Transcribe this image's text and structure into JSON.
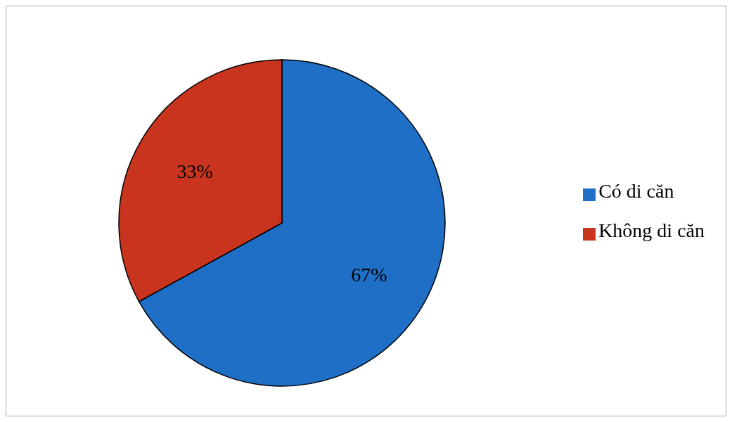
{
  "chart_data": {
    "type": "pie",
    "categories": [
      "Có di căn",
      "Không di căn"
    ],
    "values": [
      67,
      33
    ],
    "colors": [
      "#1f6fc6",
      "#c9341f"
    ],
    "value_labels": [
      "67%",
      "33%"
    ],
    "legend": "right"
  }
}
